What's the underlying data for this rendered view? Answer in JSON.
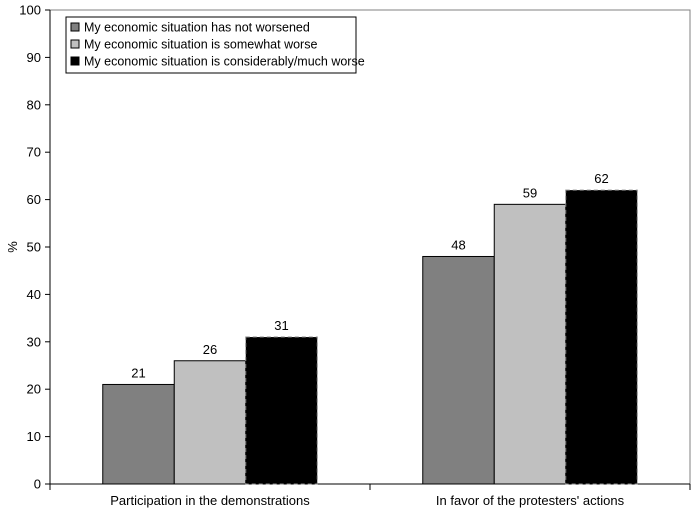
{
  "chart_data": {
    "type": "bar",
    "title": "",
    "xlabel": "",
    "ylabel": "%",
    "ylim": [
      0,
      100
    ],
    "yticks": [
      0,
      10,
      20,
      30,
      40,
      50,
      60,
      70,
      80,
      90,
      100
    ],
    "grid": false,
    "legend_position": "top-left",
    "categories": [
      "Participation in the demonstrations",
      "In favor of the protesters' actions"
    ],
    "series": [
      {
        "name": "My economic situation has not worsened",
        "values": [
          21,
          48
        ],
        "color": "#808080"
      },
      {
        "name": "My economic situation is somewhat worse",
        "values": [
          26,
          59
        ],
        "color": "#c0c0c0"
      },
      {
        "name": "My economic situation is considerably/much worse",
        "values": [
          31,
          62
        ],
        "color": "#000000"
      }
    ]
  }
}
